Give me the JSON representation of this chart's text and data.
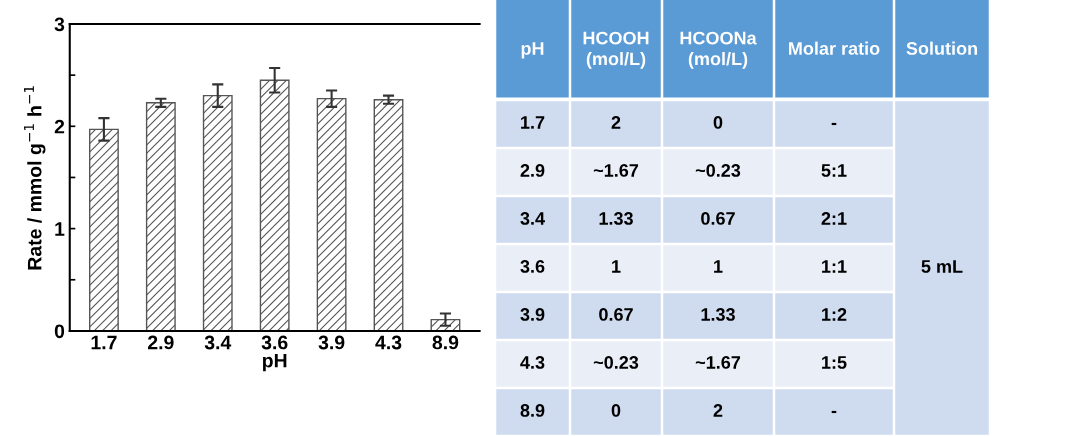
{
  "chart_data": [
    {
      "type": "bar",
      "xlabel": "pH",
      "ylabel": "Rate / mmol g$^{−1}$ h$^{−1}$",
      "categories": [
        "1.7",
        "2.9",
        "3.4",
        "3.6",
        "3.9",
        "4.3",
        "8.9"
      ],
      "values": [
        1.97,
        2.23,
        2.3,
        2.45,
        2.27,
        2.26,
        0.11
      ],
      "errors": [
        0.11,
        0.04,
        0.11,
        0.12,
        0.08,
        0.04,
        0.06
      ],
      "color": "#555555",
      "ylim": [
        0,
        3
      ],
      "yticks": [
        0,
        {
          "value": 0.5,
          "label": null
        },
        1,
        {
          "value": 1.5,
          "label": null
        },
        2,
        {
          "value": 2.5,
          "label": null
        },
        3
      ],
      "grid": false
    },
    {
      "type": "other",
      "categories": [
        "pH",
        "HCOOH\n(mol/L)",
        "HCOONa\n(mol/L)",
        "Molar ratio",
        "Solution"
      ],
      "y_categories": [
        "1.7",
        "2.9",
        "3.4",
        "3.6",
        "3.9",
        "4.3",
        "8.9"
      ],
      "cell_labels": [
        [
          "2",
          "0",
          "-"
        ],
        [
          "~1.67",
          "~0.23",
          "5:1"
        ],
        [
          "1.33",
          "0.67",
          "2:1"
        ],
        [
          "1",
          "1",
          "1:1"
        ],
        [
          "0.67",
          "1.33",
          "1:2"
        ],
        [
          "~0.23",
          "~1.67",
          "1:5"
        ],
        [
          "0",
          "2",
          "-"
        ]
      ],
      "annotations": [
        "5 mL"
      ]
    }
  ]
}
